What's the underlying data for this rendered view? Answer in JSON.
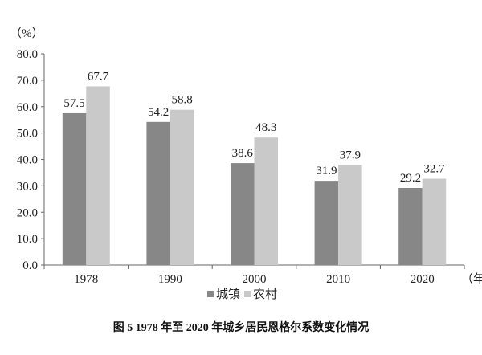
{
  "chart_data": {
    "type": "bar",
    "title": "图 5   1978 年至 2020 年城乡居民恩格尔系数变化情况",
    "ylabel": "（%）",
    "xlabel": "（年）",
    "ylim": [
      0,
      80
    ],
    "yticks": [
      "0.0",
      "10.0",
      "20.0",
      "30.0",
      "40.0",
      "50.0",
      "60.0",
      "70.0",
      "80.0"
    ],
    "categories": [
      "1978",
      "1990",
      "2000",
      "2010",
      "2020"
    ],
    "series": [
      {
        "name": "城镇",
        "color": "#878787",
        "values": [
          57.5,
          54.2,
          38.6,
          31.9,
          29.2
        ],
        "labels": [
          "57.5",
          "54.2",
          "38.6",
          "31.9",
          "29.2"
        ]
      },
      {
        "name": "农村",
        "color": "#c9c9c9",
        "values": [
          67.7,
          58.8,
          48.3,
          37.9,
          32.7
        ],
        "labels": [
          "67.7",
          "58.8",
          "48.3",
          "37.9",
          "32.7"
        ]
      }
    ],
    "grid": false,
    "legend": "bottom",
    "data_labels": true
  }
}
